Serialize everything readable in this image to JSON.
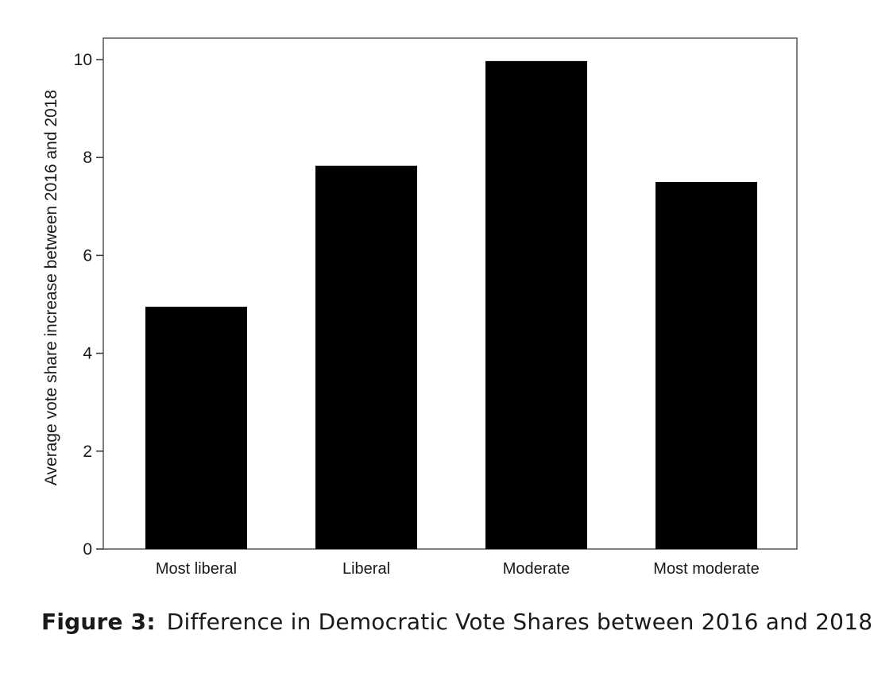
{
  "chart_data": {
    "type": "bar",
    "categories": [
      "Most liberal",
      "Liberal",
      "Moderate",
      "Most moderate"
    ],
    "values": [
      4.95,
      7.83,
      9.97,
      7.5
    ],
    "ylabel": "Average vote share increase between 2016 and 2018",
    "xlabel": "",
    "ylim": [
      0,
      10.4
    ],
    "yticks": [
      "0",
      "2",
      "4",
      "6",
      "8",
      "10"
    ],
    "bar_color": "#000000",
    "grid": false
  },
  "caption": {
    "label": "Figure 3:",
    "text": "Difference in Democratic Vote Shares between 2016 and 2018."
  }
}
